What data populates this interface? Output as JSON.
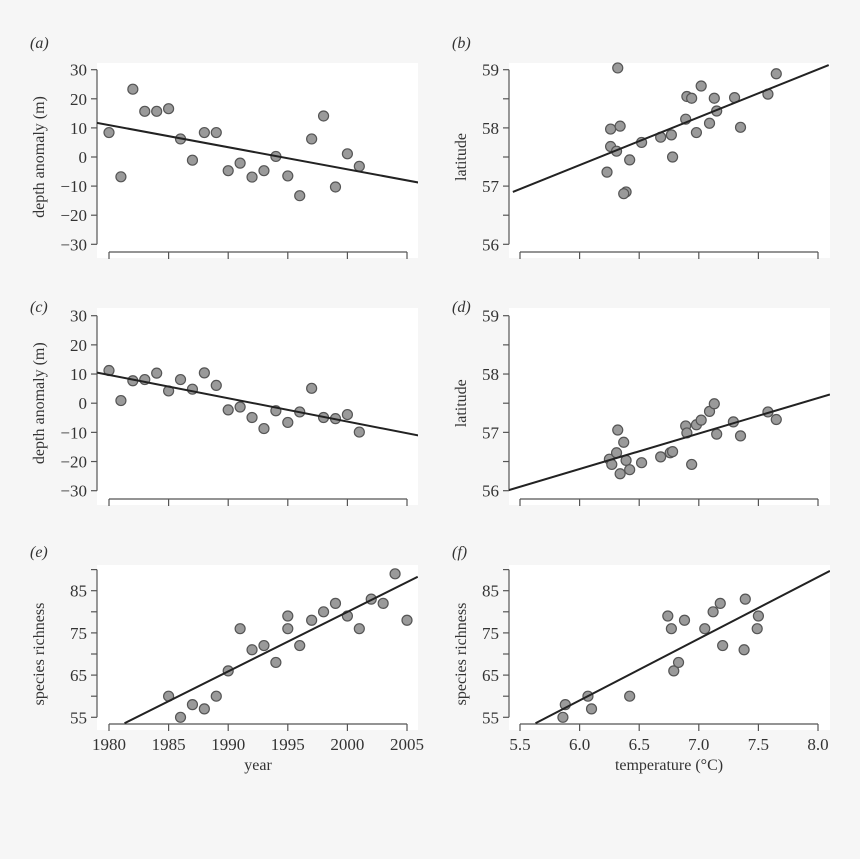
{
  "chart_data": [
    {
      "panel": "(a)",
      "type": "scatter",
      "xlabel": "",
      "ylabel": "depth anomaly (m)",
      "xticks": [
        1980,
        1985,
        1990,
        1995,
        2000,
        2005
      ],
      "xtick_labels_shown": false,
      "yticks": [
        -30,
        -20,
        -10,
        0,
        10,
        20,
        30
      ],
      "yminor": [],
      "ytick_labels": [
        "−30",
        "−20",
        "−10",
        "0",
        "10",
        "20",
        "30"
      ],
      "xlim": [
        1979,
        2006
      ],
      "ylim": [
        -30,
        30
      ],
      "x": [
        1980,
        1981,
        1982,
        1983,
        1984,
        1985,
        1986,
        1987,
        1988,
        1989,
        1990,
        1991,
        1992,
        1993,
        1994,
        1995,
        1996,
        1997,
        1998,
        1999,
        2000,
        2001
      ],
      "y": [
        8.4,
        -6.8,
        23.3,
        15.7,
        15.7,
        16.6,
        6.2,
        -1.1,
        8.4,
        8.4,
        -4.7,
        -2.1,
        -6.9,
        -4.7,
        0.2,
        -6.5,
        -13.3,
        6.2,
        14.1,
        -10.3,
        1.1,
        -3.2
      ],
      "fit_line": {
        "x": [
          1978.9,
          2006
        ],
        "y": [
          11.8,
          -8.8
        ]
      }
    },
    {
      "panel": "(b)",
      "type": "scatter",
      "xlabel": "",
      "ylabel": "latitude",
      "xticks": [
        5.5,
        6.0,
        6.5,
        7.0,
        7.5,
        8.0
      ],
      "xtick_labels_shown": false,
      "yticks": [
        56,
        57,
        58,
        59
      ],
      "yminor": [
        56.5,
        57.5,
        58.5
      ],
      "ytick_labels": [
        "56",
        "57",
        "58",
        "59"
      ],
      "xlim": [
        5.45,
        8.1
      ],
      "ylim": [
        56,
        59
      ],
      "x": [
        6.32,
        6.26,
        6.34,
        6.26,
        6.31,
        6.23,
        6.42,
        6.39,
        6.37,
        6.52,
        6.68,
        6.77,
        6.78,
        6.89,
        6.9,
        6.94,
        7.02,
        6.98,
        7.09,
        7.13,
        7.15,
        7.3,
        7.35,
        7.58,
        7.65
      ],
      "y": [
        59.03,
        57.98,
        58.03,
        57.68,
        57.6,
        57.24,
        57.45,
        56.9,
        56.87,
        57.75,
        57.84,
        57.88,
        57.5,
        58.15,
        58.54,
        58.51,
        58.72,
        57.92,
        58.08,
        58.51,
        58.29,
        58.52,
        58.01,
        58.58,
        58.93
      ],
      "fit_line": {
        "x": [
          5.44,
          8.09
        ],
        "y": [
          56.9,
          59.08
        ]
      }
    },
    {
      "panel": "(c)",
      "type": "scatter",
      "xlabel": "",
      "ylabel": "depth anomaly (m)",
      "xticks": [
        1980,
        1985,
        1990,
        1995,
        2000,
        2005
      ],
      "xtick_labels_shown": false,
      "yticks": [
        -30,
        -20,
        -10,
        0,
        10,
        20,
        30
      ],
      "yminor": [],
      "ytick_labels": [
        "−30",
        "−20",
        "−10",
        "0",
        "10",
        "20",
        "30"
      ],
      "xlim": [
        1979,
        2006
      ],
      "ylim": [
        -30,
        30
      ],
      "x": [
        1980,
        1981,
        1982,
        1983,
        1984,
        1985,
        1986,
        1987,
        1988,
        1989,
        1990,
        1991,
        1992,
        1993,
        1994,
        1995,
        1996,
        1997,
        1998,
        1999,
        2000,
        2001
      ],
      "y": [
        11.2,
        0.9,
        7.7,
        8.1,
        10.3,
        4.2,
        8.1,
        4.8,
        10.4,
        6.1,
        -2.3,
        -1.3,
        -4.9,
        -8.7,
        -2.6,
        -6.6,
        -3.0,
        5.1,
        -4.9,
        -5.3,
        -3.9,
        -9.9
      ],
      "fit_line": {
        "x": [
          1979.0,
          2006
        ],
        "y": [
          10.5,
          -11.1
        ]
      }
    },
    {
      "panel": "(d)",
      "type": "scatter",
      "xlabel": "",
      "ylabel": "latitude",
      "xticks": [
        5.5,
        6.0,
        6.5,
        7.0,
        7.5,
        8.0
      ],
      "xtick_labels_shown": false,
      "yticks": [
        56,
        57,
        58,
        59
      ],
      "yminor": [
        56.5,
        57.5,
        58.5
      ],
      "ytick_labels": [
        "56",
        "57",
        "58",
        "59"
      ],
      "xlim": [
        5.45,
        8.1
      ],
      "ylim": [
        56,
        59
      ],
      "x": [
        6.25,
        6.27,
        6.31,
        6.32,
        6.34,
        6.37,
        6.39,
        6.42,
        6.52,
        6.68,
        6.76,
        6.78,
        6.89,
        6.9,
        6.94,
        6.98,
        7.02,
        7.09,
        7.13,
        7.15,
        7.29,
        7.35,
        7.58,
        7.65
      ],
      "y": [
        56.54,
        56.45,
        56.65,
        57.04,
        56.29,
        56.83,
        56.52,
        56.36,
        56.48,
        56.58,
        56.65,
        56.67,
        57.11,
        56.99,
        56.45,
        57.13,
        57.21,
        57.36,
        57.49,
        56.97,
        57.18,
        56.94,
        57.35,
        57.22
      ],
      "fit_line": {
        "x": [
          5.39,
          8.1
        ],
        "y": [
          56.0,
          57.65
        ]
      }
    },
    {
      "panel": "(e)",
      "type": "scatter",
      "xlabel": "year",
      "ylabel": "species richness",
      "xticks": [
        1980,
        1985,
        1990,
        1995,
        2000,
        2005
      ],
      "xtick_labels_shown": true,
      "xtick_labels": [
        "1980",
        "1985",
        "1990",
        "1995",
        "2000",
        "2005"
      ],
      "yticks": [
        55,
        65,
        75,
        85
      ],
      "yminor": [
        60,
        70,
        80,
        90
      ],
      "ytick_labels": [
        "55",
        "65",
        "75",
        "85"
      ],
      "xlim": [
        1979,
        2006
      ],
      "ylim": [
        53.6,
        90
      ],
      "x": [
        1985,
        1986,
        1987,
        1988,
        1989,
        1990,
        1991,
        1992,
        1993,
        1994,
        1995,
        1995,
        1996,
        1997,
        1998,
        1999,
        2000,
        2001,
        2002,
        2003,
        2004,
        2005
      ],
      "y": [
        60,
        55,
        58,
        57,
        60,
        66,
        76,
        71,
        72,
        68,
        79,
        76,
        72,
        78,
        80,
        82,
        79,
        76,
        83,
        82,
        89,
        78
      ],
      "fit_line": {
        "x": [
          1981.3,
          2005.9
        ],
        "y": [
          53.6,
          88.3
        ]
      }
    },
    {
      "panel": "(f)",
      "type": "scatter",
      "xlabel": "temperature (°C)",
      "ylabel": "species richness",
      "xticks": [
        5.5,
        6.0,
        6.5,
        7.0,
        7.5,
        8.0
      ],
      "xtick_labels_shown": true,
      "xtick_labels": [
        "5.5",
        "6.0",
        "6.5",
        "7.0",
        "7.5",
        "8.0"
      ],
      "yticks": [
        55,
        65,
        75,
        85
      ],
      "yminor": [
        60,
        70,
        80,
        90
      ],
      "ytick_labels": [
        "55",
        "65",
        "75",
        "85"
      ],
      "xlim": [
        5.45,
        8.1
      ],
      "ylim": [
        53.6,
        90
      ],
      "x": [
        5.86,
        5.88,
        6.07,
        6.1,
        6.42,
        6.74,
        6.77,
        6.88,
        6.79,
        6.83,
        7.05,
        7.12,
        7.18,
        7.2,
        7.39,
        7.38,
        7.5,
        7.49
      ],
      "y": [
        55,
        58,
        60,
        57,
        60,
        79,
        76,
        78,
        66,
        68,
        76,
        80,
        82,
        72,
        83,
        71,
        79,
        76
      ],
      "fit_line": {
        "x": [
          5.63,
          8.1
        ],
        "y": [
          53.6,
          89.7
        ]
      }
    }
  ],
  "colors": {
    "point_fill": "#9a9a9a",
    "point_stroke": "#555555",
    "line": "#222222",
    "axis": "#555555",
    "plot_bg": "#ffffff"
  }
}
